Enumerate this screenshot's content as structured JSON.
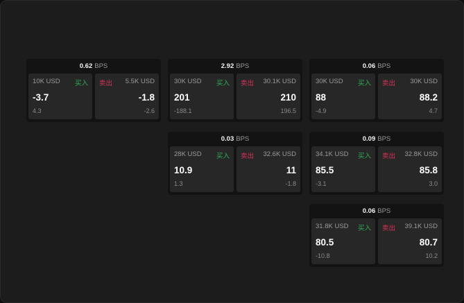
{
  "unit": "BPS",
  "colors": {
    "buy": "#2fae5e",
    "sell": "#d8335c"
  },
  "widgets": [
    {
      "spread": "0.62",
      "buy_label": "买入",
      "sell_label": "卖出",
      "bid_size": "10K USD",
      "bid": "-3.7",
      "bid_change": "4.3",
      "ask_size": "5.5K USD",
      "ask": "-1.8",
      "ask_change": "-2.6"
    },
    {
      "spread": "2.92",
      "buy_label": "买入",
      "sell_label": "卖出",
      "bid_size": "30K USD",
      "bid": "201",
      "bid_change": "-188.1",
      "ask_size": "30.1K USD",
      "ask": "210",
      "ask_change": "196.5"
    },
    {
      "spread": "0.06",
      "buy_label": "买入",
      "sell_label": "卖出",
      "bid_size": "30K USD",
      "bid": "88",
      "bid_change": "-4.9",
      "ask_size": "30K USD",
      "ask": "88.2",
      "ask_change": "4.7"
    },
    {
      "spread": "0.03",
      "buy_label": "买入",
      "sell_label": "卖出",
      "bid_size": "28K USD",
      "bid": "10.9",
      "bid_change": "1.3",
      "ask_size": "32.6K USD",
      "ask": "11",
      "ask_change": "-1.8"
    },
    {
      "spread": "0.09",
      "buy_label": "买入",
      "sell_label": "卖出",
      "bid_size": "34.1K USD",
      "bid": "85.5",
      "bid_change": "-3.1",
      "ask_size": "32.8K USD",
      "ask": "85.8",
      "ask_change": "3.0"
    },
    {
      "spread": "0.06",
      "buy_label": "买入",
      "sell_label": "卖出",
      "bid_size": "31.8K USD",
      "bid": "80.5",
      "bid_change": "-10.8",
      "ask_size": "39.1K USD",
      "ask": "80.7",
      "ask_change": "10.2"
    }
  ]
}
